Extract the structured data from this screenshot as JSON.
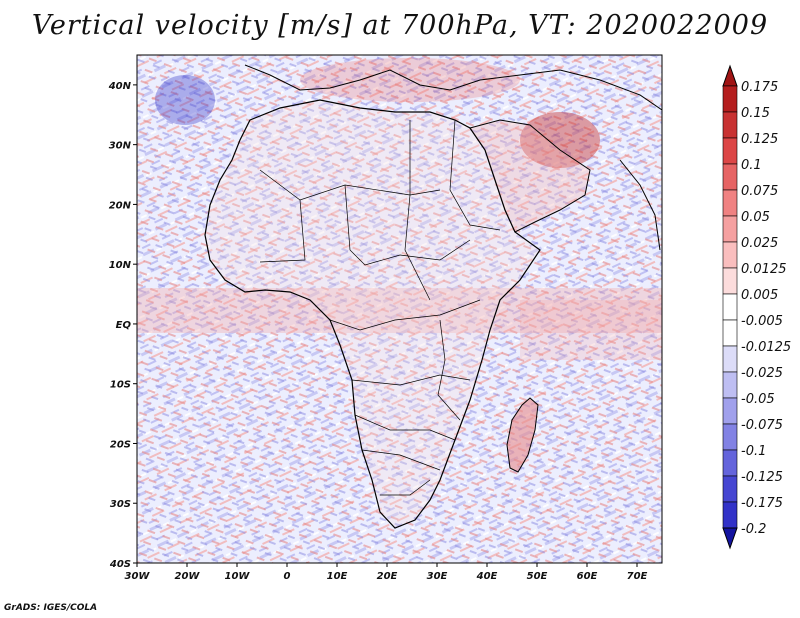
{
  "title": "Vertical velocity [m/s] at 700hPa, VT: 2020022009",
  "credit": "GrADS: IGES/COLA",
  "map": {
    "lon_range": [
      -30,
      75
    ],
    "lat_range": [
      -40,
      45
    ],
    "lat_ticks": [
      {
        "value": 40,
        "label": "40N"
      },
      {
        "value": 30,
        "label": "30N"
      },
      {
        "value": 20,
        "label": "20N"
      },
      {
        "value": 10,
        "label": "10N"
      },
      {
        "value": 0,
        "label": "EQ"
      },
      {
        "value": -10,
        "label": "10S"
      },
      {
        "value": -20,
        "label": "20S"
      },
      {
        "value": -30,
        "label": "30S"
      },
      {
        "value": -40,
        "label": "40S"
      }
    ],
    "lon_ticks": [
      {
        "value": -30,
        "label": "30W"
      },
      {
        "value": -20,
        "label": "20W"
      },
      {
        "value": -10,
        "label": "10W"
      },
      {
        "value": 0,
        "label": "0"
      },
      {
        "value": 10,
        "label": "10E"
      },
      {
        "value": 20,
        "label": "20E"
      },
      {
        "value": 30,
        "label": "30E"
      },
      {
        "value": 40,
        "label": "40E"
      },
      {
        "value": 50,
        "label": "50E"
      },
      {
        "value": 60,
        "label": "60E"
      },
      {
        "value": 70,
        "label": "70E"
      }
    ]
  },
  "colorbar": {
    "levels": [
      {
        "label": "0.175",
        "color": "#b41e1e"
      },
      {
        "label": "0.15",
        "color": "#c83232"
      },
      {
        "label": "0.125",
        "color": "#dc4646"
      },
      {
        "label": "0.1",
        "color": "#e66464"
      },
      {
        "label": "0.075",
        "color": "#f08282"
      },
      {
        "label": "0.05",
        "color": "#f5a0a0"
      },
      {
        "label": "0.025",
        "color": "#fabebe"
      },
      {
        "label": "0.0125",
        "color": "#fcdcdc"
      },
      {
        "label": "0.005",
        "color": "#ffffff"
      },
      {
        "label": "-0.005",
        "color": "#ffffff"
      },
      {
        "label": "-0.0125",
        "color": "#dcdcf8"
      },
      {
        "label": "-0.025",
        "color": "#bebef2"
      },
      {
        "label": "-0.05",
        "color": "#a0a0ec"
      },
      {
        "label": "-0.075",
        "color": "#8282e4"
      },
      {
        "label": "-0.1",
        "color": "#6464dc"
      },
      {
        "label": "-0.125",
        "color": "#4646d2"
      },
      {
        "label": "-0.175",
        "color": "#3232c8"
      },
      {
        "label": "-0.2",
        "color": "#1e1eb4"
      }
    ],
    "top_color": "#a01414",
    "bottom_color": "#1414a0"
  }
}
